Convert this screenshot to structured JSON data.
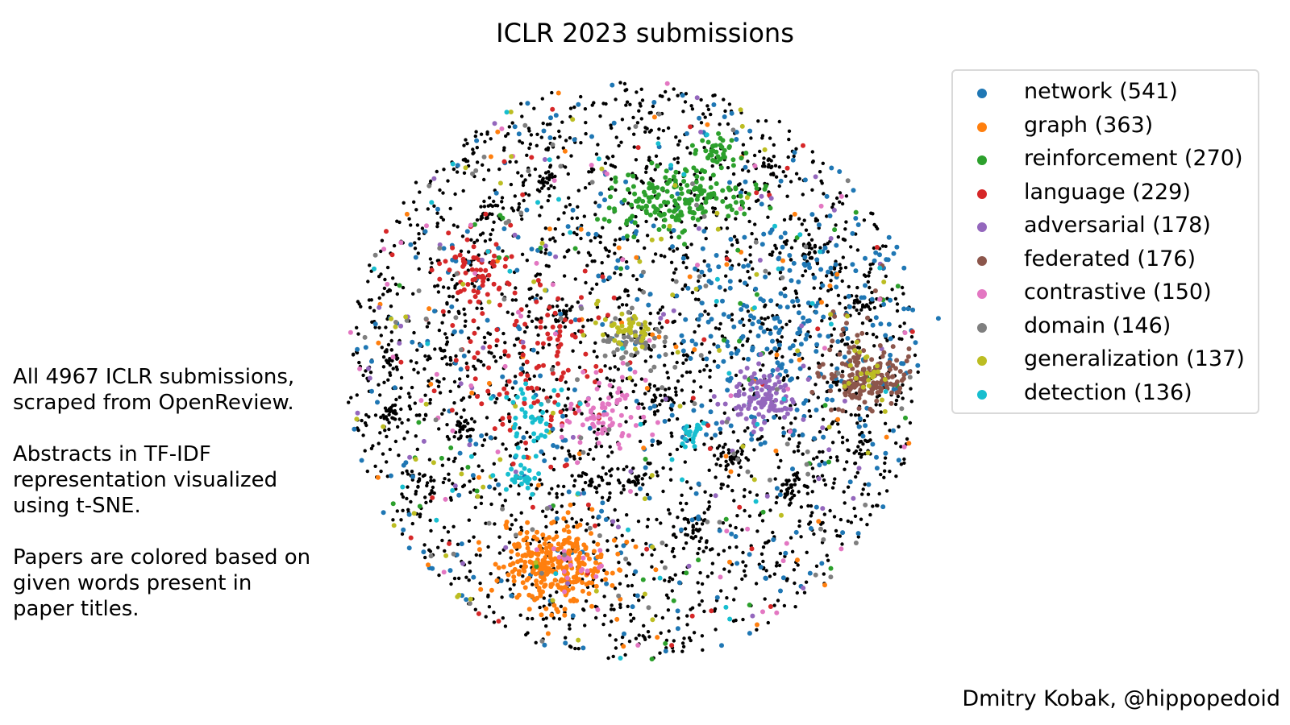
{
  "chart_data": {
    "type": "scatter",
    "title": "ICLR 2023 submissions",
    "xlabel": "",
    "ylabel": "",
    "axes_visible": false,
    "grid": false,
    "legend_placement": "top-right",
    "uncategorized_color": "#000000",
    "series": [
      {
        "name": "network (541)",
        "color": "#1f77b4",
        "clusters": [
          [
            0.55,
            0.15,
            0.2,
            0.2,
            220
          ],
          [
            0.0,
            0.0,
            0.45,
            0.45,
            321
          ]
        ]
      },
      {
        "name": "graph (363)",
        "color": "#ff7f0e",
        "clusters": [
          [
            -0.28,
            -0.67,
            0.09,
            0.07,
            300
          ],
          [
            0.0,
            -0.2,
            0.45,
            0.4,
            63
          ]
        ]
      },
      {
        "name": "reinforcement (270)",
        "color": "#2ca02c",
        "clusters": [
          [
            0.15,
            0.6,
            0.12,
            0.06,
            180
          ],
          [
            0.3,
            0.75,
            0.05,
            0.03,
            40
          ],
          [
            0.0,
            0.2,
            0.4,
            0.35,
            50
          ]
        ]
      },
      {
        "name": "language (229)",
        "color": "#d62728",
        "clusters": [
          [
            -0.55,
            0.35,
            0.06,
            0.06,
            60
          ],
          [
            -0.35,
            0.05,
            0.14,
            0.16,
            120
          ],
          [
            0.0,
            0.0,
            0.45,
            0.45,
            49
          ]
        ]
      },
      {
        "name": "adversarial (178)",
        "color": "#9467bd",
        "clusters": [
          [
            0.45,
            -0.1,
            0.06,
            0.05,
            110
          ],
          [
            0.0,
            0.0,
            0.45,
            0.45,
            68
          ]
        ]
      },
      {
        "name": "federated (176)",
        "color": "#8c564b",
        "clusters": [
          [
            0.82,
            -0.02,
            0.07,
            0.05,
            150
          ],
          [
            0.75,
            0.1,
            0.08,
            0.1,
            26
          ]
        ]
      },
      {
        "name": "contrastive (150)",
        "color": "#e377c2",
        "clusters": [
          [
            -0.1,
            -0.15,
            0.07,
            0.07,
            70
          ],
          [
            -0.2,
            -0.67,
            0.05,
            0.03,
            20
          ],
          [
            0.0,
            0.0,
            0.45,
            0.45,
            60
          ]
        ]
      },
      {
        "name": "domain (146)",
        "color": "#7f7f7f",
        "clusters": [
          [
            0.0,
            0.1,
            0.05,
            0.04,
            50
          ],
          [
            0.0,
            0.0,
            0.45,
            0.45,
            96
          ]
        ]
      },
      {
        "name": "generalization (137)",
        "color": "#bcbd22",
        "clusters": [
          [
            0.0,
            0.15,
            0.05,
            0.03,
            40
          ],
          [
            0.8,
            0.0,
            0.04,
            0.04,
            20
          ],
          [
            0.0,
            0.0,
            0.45,
            0.45,
            77
          ]
        ]
      },
      {
        "name": "detection (136)",
        "color": "#17becf",
        "clusters": [
          [
            -0.4,
            -0.38,
            0.03,
            0.02,
            25
          ],
          [
            -0.35,
            -0.18,
            0.05,
            0.06,
            40
          ],
          [
            0.2,
            -0.22,
            0.02,
            0.02,
            20
          ],
          [
            0.0,
            0.0,
            0.45,
            0.45,
            51
          ]
        ]
      }
    ]
  },
  "annotation": {
    "paragraphs": [
      "All 4967 ICLR submissions, scraped from OpenReview.",
      "Abstracts in TF-IDF representation visualized using t-SNE.",
      "Papers are colored based on given words present in paper titles."
    ]
  },
  "credit": "Dmitry Kobak, @hippopedoid"
}
